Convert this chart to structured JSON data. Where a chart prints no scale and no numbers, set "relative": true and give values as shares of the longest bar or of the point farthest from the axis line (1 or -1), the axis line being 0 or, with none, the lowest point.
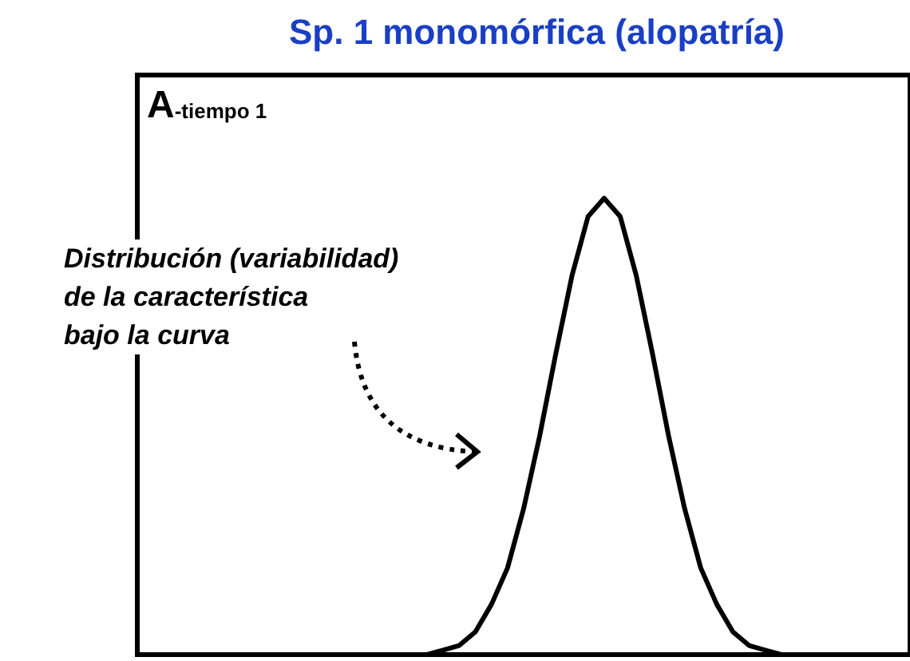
{
  "chart_data": {
    "type": "line",
    "title": "Sp. 1 monomórfica (alopatría)",
    "relative": true,
    "tick_labels": false,
    "categories": [
      null,
      null,
      null,
      null,
      null,
      null,
      null,
      null,
      null,
      null,
      null,
      null,
      null,
      null,
      null,
      null,
      null,
      null,
      null,
      null,
      null,
      null,
      null,
      null,
      null,
      null,
      null,
      null,
      null,
      null,
      null,
      null,
      null,
      null,
      null,
      null,
      null,
      null,
      null,
      null,
      null,
      null,
      null,
      null,
      null,
      null,
      null,
      null,
      null
    ],
    "series": [
      {
        "color": "#000000",
        "values": [
          0,
          0,
          0,
          0,
          0,
          0,
          0,
          0,
          0,
          0,
          0,
          0,
          0,
          0,
          0,
          0,
          0,
          0,
          0,
          0.01,
          0.02,
          0.05,
          0.11,
          0.19,
          0.32,
          0.48,
          0.66,
          0.83,
          0.96,
          1,
          0.96,
          0.83,
          0.66,
          0.48,
          0.32,
          0.19,
          0.11,
          0.05,
          0.02,
          0.01,
          0,
          0,
          0,
          0,
          0,
          0,
          0,
          0,
          0
        ]
      }
    ],
    "annotations": [
      "A-tiempo 1",
      "Distribución (variabilidad)\nde la característica\nbajo la curva"
    ]
  }
}
